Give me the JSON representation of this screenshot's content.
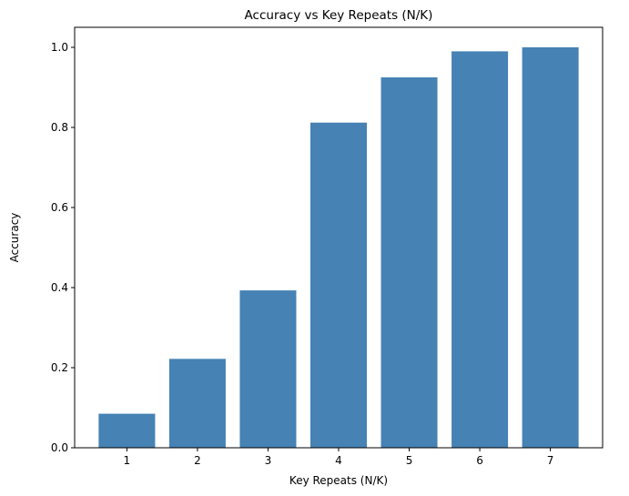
{
  "chart_data": {
    "type": "bar",
    "title": "Accuracy vs Key Repeats (N/K)",
    "xlabel": "Key Repeats (N/K)",
    "ylabel": "Accuracy",
    "categories": [
      "1",
      "2",
      "3",
      "4",
      "5",
      "6",
      "7"
    ],
    "values": [
      0.085,
      0.222,
      0.393,
      0.812,
      0.925,
      0.99,
      1.0
    ],
    "ylim": [
      0,
      1.05
    ],
    "yticks": [
      "0.0",
      "0.2",
      "0.4",
      "0.6",
      "0.8",
      "1.0"
    ],
    "bar_color": "#4682b4",
    "grid": false,
    "legend": false
  }
}
